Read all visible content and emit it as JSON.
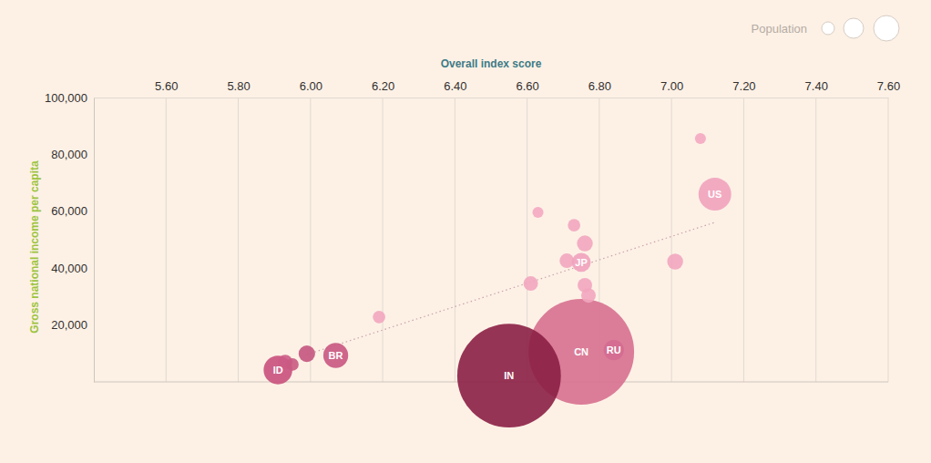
{
  "chart_data": {
    "type": "scatter",
    "x_label": "Overall index score",
    "y_label": "Gross national income per capita",
    "size_title": "Population",
    "xlim": [
      5.4,
      7.6
    ],
    "xticks": [
      {
        "value": 5.6,
        "label": "5.60"
      },
      {
        "value": 5.8,
        "label": "5.80"
      },
      {
        "value": 6.0,
        "label": "6.00"
      },
      {
        "value": 6.2,
        "label": "6.20"
      },
      {
        "value": 6.4,
        "label": "6.40"
      },
      {
        "value": 6.6,
        "label": "6.60"
      },
      {
        "value": 6.8,
        "label": "6.80"
      },
      {
        "value": 7.0,
        "label": "7.00"
      },
      {
        "value": 7.2,
        "label": "7.20"
      },
      {
        "value": 7.4,
        "label": "7.40"
      },
      {
        "value": 7.6,
        "label": "7.60"
      }
    ],
    "ylim": [
      0,
      100000
    ],
    "yticks": [
      {
        "value": 20000,
        "label": "20,000"
      },
      {
        "value": 40000,
        "label": "40,000"
      },
      {
        "value": 60000,
        "label": "60,000"
      },
      {
        "value": 80000,
        "label": "80,000"
      },
      {
        "value": 100000,
        "label": "100,000"
      }
    ],
    "grid": "x",
    "labels": [
      "ID",
      null,
      null,
      null,
      "BR",
      null,
      "CN",
      "IN",
      "RU",
      null,
      null,
      null,
      null,
      null,
      "JP",
      null,
      null,
      null,
      null,
      "US"
    ],
    "x": [
      5.91,
      5.93,
      5.95,
      5.99,
      6.07,
      6.19,
      6.75,
      6.55,
      6.84,
      6.61,
      6.63,
      6.73,
      6.76,
      6.71,
      6.75,
      6.76,
      6.77,
      7.01,
      7.08,
      7.12
    ],
    "values": [
      4200,
      7000,
      6100,
      9900,
      9300,
      22800,
      10600,
      2200,
      11200,
      34600,
      59600,
      55100,
      48700,
      42600,
      42000,
      34000,
      30400,
      42300,
      85600,
      66000
    ],
    "sizes": [
      270,
      60,
      30,
      90,
      213,
      30,
      1410,
      1380,
      145,
      60,
      8,
      30,
      80,
      60,
      125,
      60,
      60,
      80,
      8,
      330
    ],
    "colors": [
      "#c9507c",
      "#cc5c85",
      "#c95a82",
      "#c4557e",
      "#c95781",
      "#f2a6bf",
      "#d7708f",
      "#8b1f45",
      "#d46c91",
      "#f2a6bf",
      "#f4a9c1",
      "#f2a6bf",
      "#f2a6bf",
      "#f2a6bf",
      "#f0a2bc",
      "#f2a6bf",
      "#f2a6bf",
      "#f2a6bf",
      "#f4a9c1",
      "#f1a2bd"
    ],
    "trend_line": {
      "x": [
        5.99,
        7.12
      ],
      "values": [
        9600,
        56100
      ]
    }
  }
}
